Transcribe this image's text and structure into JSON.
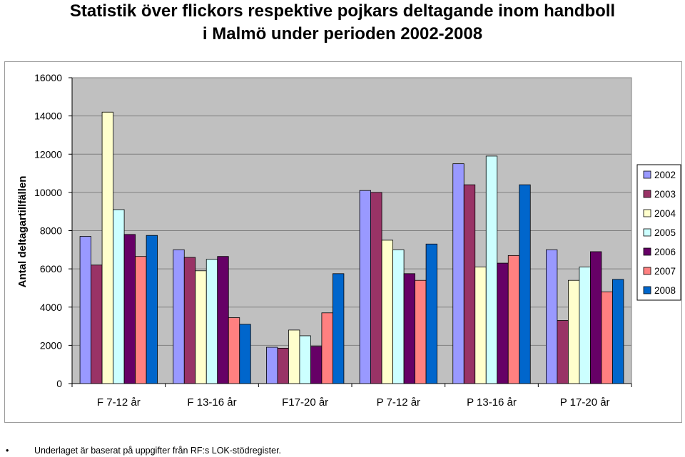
{
  "title_line1": "Statistik över flickors respektive pojkars deltagande inom handboll",
  "title_line2": "i Malmö under perioden 2002-2008",
  "footnote": "Underlaget är baserat på uppgifter från RF:s LOK-stödregister.",
  "footnote_bullet": "•",
  "colors": {
    "plot_background": "#c0c0c0",
    "gridline": "#808080",
    "series": [
      "#9999ff",
      "#993366",
      "#ffffcc",
      "#ccffff",
      "#660066",
      "#ff8080",
      "#0066cc"
    ]
  },
  "chart_data": {
    "type": "bar",
    "title": "Statistik över flickors respektive pojkars deltagande inom handboll i Malmö under perioden 2002-2008",
    "xlabel": "",
    "ylabel": "Antal deltagartillfällen",
    "ylim": [
      0,
      16000
    ],
    "yticks": [
      "0",
      "2000",
      "4000",
      "6000",
      "8000",
      "10000",
      "12000",
      "14000",
      "16000"
    ],
    "grid": true,
    "legend_position": "right",
    "categories": [
      "F 7-12 år",
      "F 13-16 år",
      "F17-20 år",
      "P 7-12 år",
      "P 13-16 år",
      "P 17-20 år"
    ],
    "series": [
      {
        "name": "2002",
        "values": [
          7700,
          7000,
          1900,
          10100,
          11500,
          7000
        ]
      },
      {
        "name": "2003",
        "values": [
          6200,
          6600,
          1850,
          10000,
          10400,
          3300
        ]
      },
      {
        "name": "2004",
        "values": [
          14200,
          5900,
          2800,
          7500,
          6100,
          5400
        ]
      },
      {
        "name": "2005",
        "values": [
          9100,
          6500,
          2500,
          7000,
          11900,
          6100
        ]
      },
      {
        "name": "2006",
        "values": [
          7800,
          6650,
          1950,
          5750,
          6300,
          6900
        ]
      },
      {
        "name": "2007",
        "values": [
          6650,
          3450,
          3700,
          5400,
          6700,
          4800
        ]
      },
      {
        "name": "2008",
        "values": [
          7750,
          3100,
          5750,
          7300,
          10400,
          5450
        ]
      }
    ]
  }
}
